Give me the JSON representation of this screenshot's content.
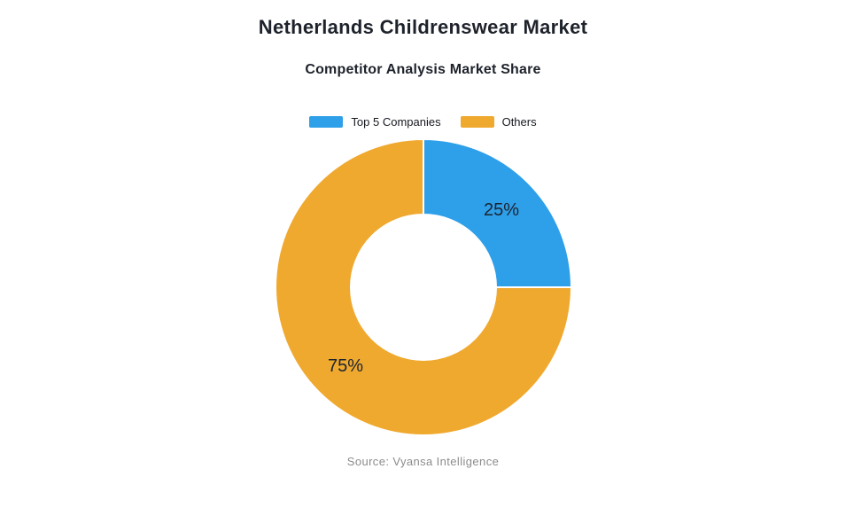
{
  "page": {
    "title": "Netherlands Childrenswear Market",
    "subtitle": "Competitor Analysis Market Share",
    "source": "Source: Vyansa Intelligence"
  },
  "chart_data": {
    "type": "pie",
    "subtype": "donut",
    "title": "Netherlands Childrenswear Market",
    "subtitle": "Competitor Analysis Market Share",
    "legend_position": "top",
    "label_color": "#1c2430",
    "background_color": "#ffffff",
    "slices": [
      {
        "label": "Top 5 Companies",
        "value": 25,
        "display": "25%",
        "color": "#2E9FE9"
      },
      {
        "label": "Others",
        "value": 75,
        "display": "75%",
        "color": "#F0A92F"
      }
    ]
  }
}
